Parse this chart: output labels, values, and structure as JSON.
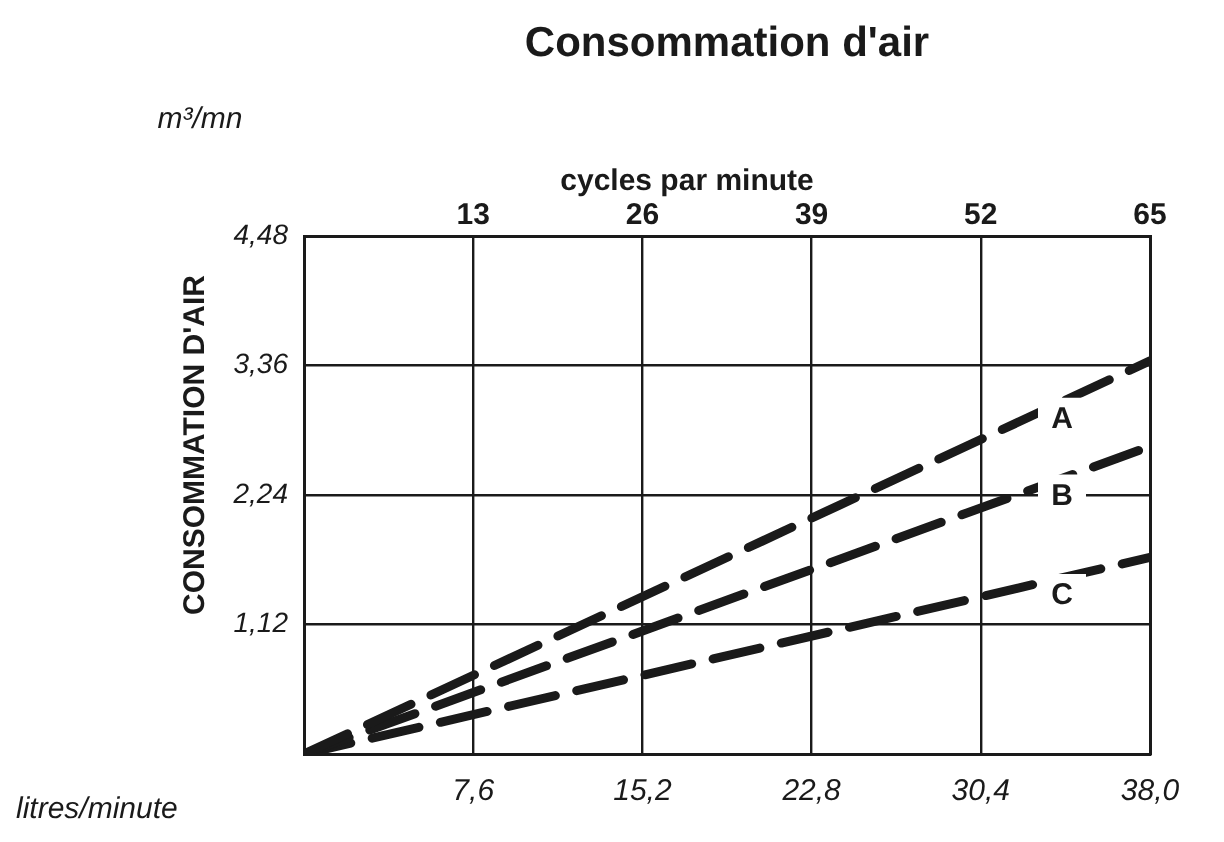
{
  "chart_data": {
    "type": "line",
    "title": "Consommation d'air",
    "xlabel": "litres/minute",
    "x2label": "cycles par minute",
    "ylabel": "CONSOMMATION D'AIR",
    "annotations": [
      "m³/mn"
    ],
    "x": [
      0,
      38.0
    ],
    "series": [
      {
        "name": "A",
        "color": "#1a1a1a",
        "values": [
          0,
          3.4
        ]
      },
      {
        "name": "B",
        "color": "#1a1a1a",
        "values": [
          0,
          2.66
        ]
      },
      {
        "name": "C",
        "color": "#1a1a1a",
        "values": [
          0,
          1.7
        ]
      }
    ],
    "xlim": [
      0,
      38.0
    ],
    "xticks": [
      {
        "value": 7.6,
        "label": "7,6"
      },
      {
        "value": 15.2,
        "label": "15,2"
      },
      {
        "value": 22.8,
        "label": "22,8"
      },
      {
        "value": 30.4,
        "label": "30,4"
      },
      {
        "value": 38.0,
        "label": "38,0"
      }
    ],
    "x2lim": [
      0,
      65
    ],
    "x2ticks": [
      13,
      26,
      39,
      52,
      65
    ],
    "ylim": [
      0,
      4.48
    ],
    "yticks": [
      {
        "value": 1.12,
        "label": "1,12"
      },
      {
        "value": 2.24,
        "label": "2,24"
      },
      {
        "value": 3.36,
        "label": "3,36"
      },
      {
        "value": 4.48,
        "label": "4,48"
      }
    ],
    "grid": true,
    "legend": false,
    "marker": "none",
    "line_style": "dashed"
  }
}
